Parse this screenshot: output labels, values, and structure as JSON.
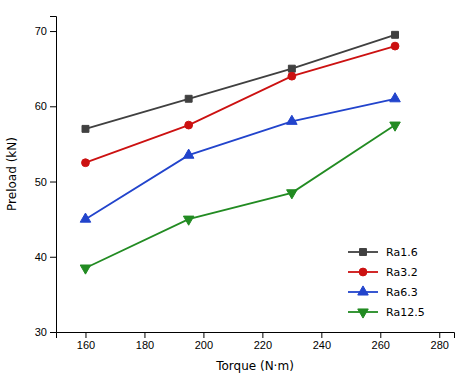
{
  "chart_data": {
    "type": "line",
    "xlabel": "Torque (N·m)",
    "ylabel": "Preload (kN)",
    "x": [
      160,
      195,
      230,
      265
    ],
    "series": [
      {
        "name": "Ra1.6",
        "values": [
          57,
          61,
          65,
          69.5
        ],
        "color": "#404040",
        "marker": "square",
        "line_style": "solid"
      },
      {
        "name": "Ra3.2",
        "values": [
          52.5,
          57.5,
          64,
          68
        ],
        "color": "#cc1111",
        "marker": "circle",
        "line_style": "solid"
      },
      {
        "name": "Ra6.3",
        "values": [
          45,
          53.5,
          58,
          61
        ],
        "color": "#2244cc",
        "marker": "triangle-up",
        "line_style": "solid"
      },
      {
        "name": "Ra12.5",
        "values": [
          38.5,
          45,
          48.5,
          57.5
        ],
        "color": "#228B22",
        "marker": "triangle-down",
        "line_style": "solid"
      }
    ],
    "xlim": [
      150,
      285
    ],
    "ylim": [
      30,
      72
    ],
    "xticks": [
      160,
      180,
      200,
      220,
      240,
      260,
      280
    ],
    "yticks": [
      30,
      40,
      50,
      60,
      70
    ],
    "legend": "lower right"
  }
}
